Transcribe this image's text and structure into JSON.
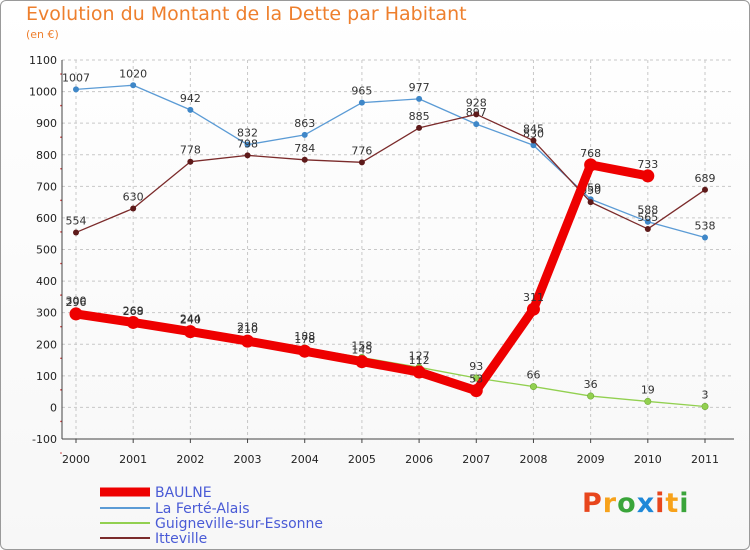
{
  "chart_data": {
    "type": "line",
    "title": "Evolution du Montant de la Dette par Habitant",
    "subtitle": "(en €)",
    "x": [
      2000,
      2001,
      2002,
      2003,
      2004,
      2005,
      2006,
      2007,
      2008,
      2009,
      2010,
      2011
    ],
    "ylim": [
      -100,
      1100
    ],
    "yticks": [
      -100,
      0,
      100,
      200,
      300,
      400,
      500,
      600,
      700,
      800,
      900,
      1000,
      1100
    ],
    "grid": true,
    "legend": "bottom-left",
    "series": [
      {
        "name": "BAULNE",
        "color": "#ee0000",
        "values": [
          296,
          269,
          240,
          210,
          178,
          145,
          112,
          53,
          311,
          768,
          733,
          null
        ]
      },
      {
        "name": "La Ferté-Alais",
        "color": "#5b9bd5",
        "values": [
          1007,
          1020,
          942,
          832,
          863,
          965,
          977,
          897,
          830,
          659,
          588,
          538
        ]
      },
      {
        "name": "Guigneville-sur-Essonne",
        "color": "#92d050",
        "values": [
          300,
          268,
          244,
          218,
          188,
          158,
          127,
          93,
          66,
          36,
          19,
          3
        ]
      },
      {
        "name": "Itteville",
        "color": "#7b2b2b",
        "values": [
          554,
          630,
          778,
          798,
          784,
          776,
          885,
          928,
          845,
          650,
          565,
          689
        ]
      }
    ]
  },
  "logo": {
    "text": "Proxiti",
    "colors": [
      "#e8461d",
      "#f7a21b",
      "#3aa53a",
      "#1e88d8",
      "#e8461d",
      "#f7a21b",
      "#3aa53a"
    ]
  }
}
